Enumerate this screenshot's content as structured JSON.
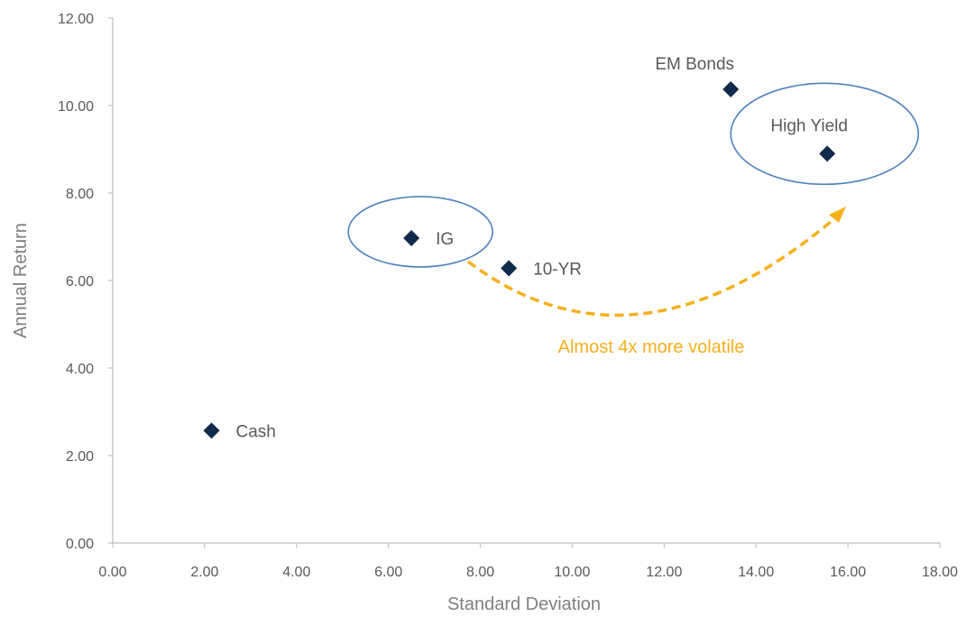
{
  "chart_data": {
    "type": "scatter",
    "xlabel": "Standard Deviation",
    "ylabel": "Annual Return",
    "xlim": [
      0,
      18
    ],
    "ylim": [
      0,
      12
    ],
    "x_ticks": [
      "0.00",
      "2.00",
      "4.00",
      "6.00",
      "8.00",
      "10.00",
      "12.00",
      "14.00",
      "16.00",
      "18.00"
    ],
    "y_ticks": [
      "0.00",
      "2.00",
      "4.00",
      "6.00",
      "8.00",
      "10.00",
      "12.00"
    ],
    "grid": false,
    "points": [
      {
        "label": "Cash",
        "x": 2.15,
        "y": 2.57
      },
      {
        "label": "IG",
        "x": 6.5,
        "y": 6.97
      },
      {
        "label": "10-YR",
        "x": 8.62,
        "y": 6.28
      },
      {
        "label": "EM Bonds",
        "x": 13.45,
        "y": 10.37
      },
      {
        "label": "High Yield",
        "x": 15.55,
        "y": 8.9
      }
    ],
    "highlighted": [
      "IG",
      "High Yield"
    ],
    "annotation": "Almost 4x more volatile",
    "colors": {
      "marker": "#0f2a4a",
      "ellipse": "#4f81bd",
      "arrow": "#f5b01c",
      "axis": "#bfbfbf"
    }
  }
}
